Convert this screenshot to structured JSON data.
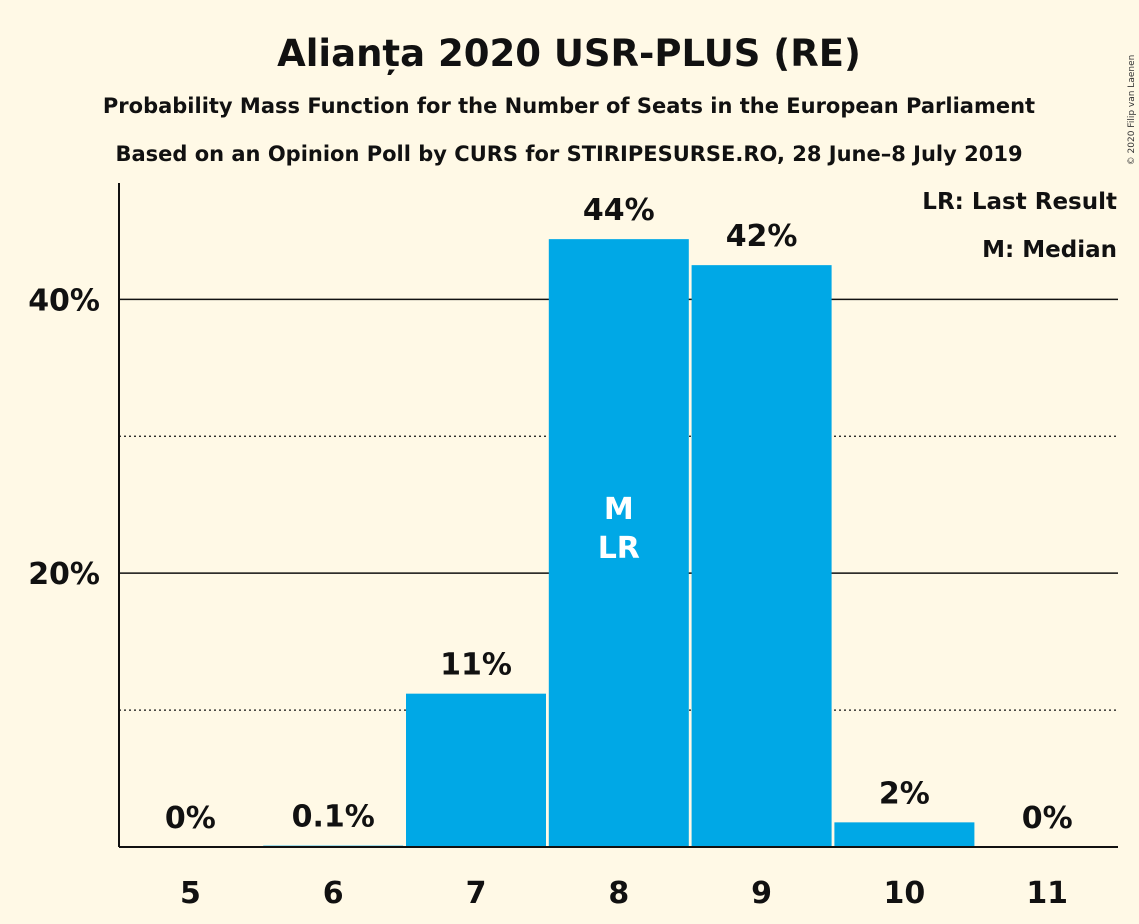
{
  "chart_data": {
    "type": "bar",
    "title": "Alianța 2020 USR-PLUS (RE)",
    "subtitle": "Probability Mass Function for the Number of Seats in the European Parliament",
    "subtitle2": "Based on an Opinion Poll by CURS for STIRIPESURSE.RO, 28 June–8 July 2019",
    "categories": [
      "5",
      "6",
      "7",
      "8",
      "9",
      "10",
      "11"
    ],
    "values": [
      0,
      0.1,
      11.2,
      44.4,
      42.5,
      1.8,
      0
    ],
    "data_labels": [
      "0%",
      "0.1%",
      "11%",
      "44%",
      "42%",
      "2%",
      "0%"
    ],
    "y_ticks": [
      {
        "value": 20,
        "label": "20%"
      },
      {
        "value": 40,
        "label": "40%"
      }
    ],
    "minor_gridlines": [
      10,
      30
    ],
    "ylim": [
      0,
      48.5
    ],
    "median_index": 3,
    "last_result_index": 3,
    "median_marker": "M",
    "last_result_marker": "LR",
    "legend": [
      "LR: Last Result",
      "M: Median"
    ],
    "legend_position": "top-right",
    "bar_color": "#00a8e6",
    "background_color": "#fff9e6",
    "copyright": "© 2020 Filip van Laenen"
  }
}
